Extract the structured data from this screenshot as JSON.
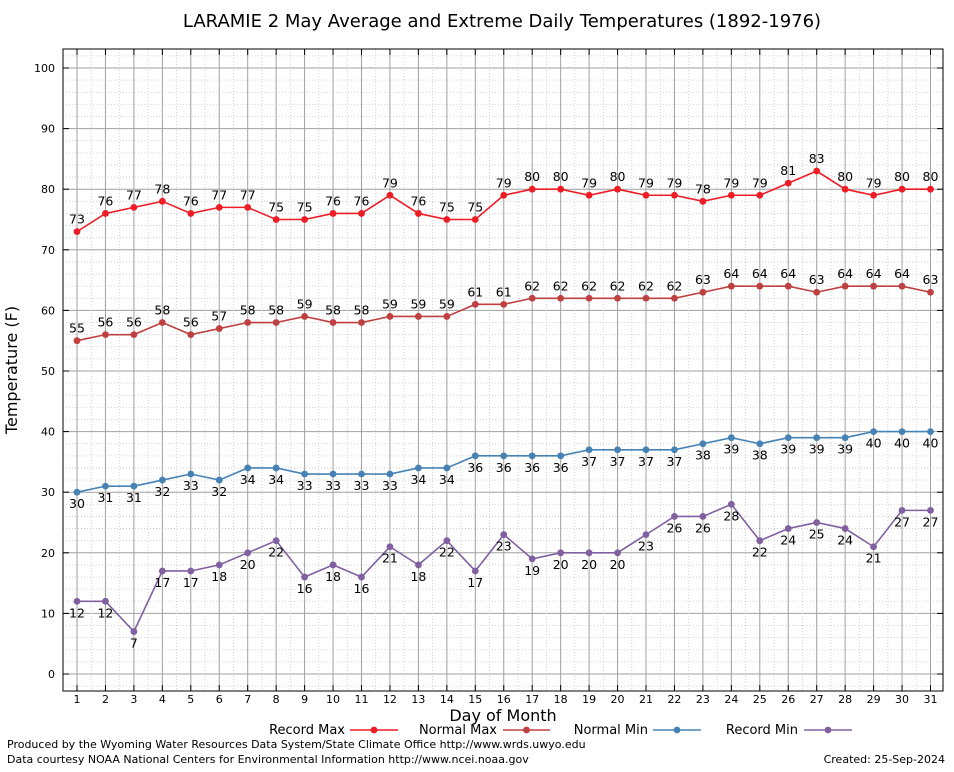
{
  "chart_data": {
    "type": "line",
    "title": "LARAMIE 2 May Average and Extreme Daily Temperatures (1892-1976)",
    "xlabel": "Day of Month",
    "ylabel": "Temperature (F)",
    "xlim": [
      1,
      31
    ],
    "ylim": [
      0,
      100
    ],
    "x": [
      1,
      2,
      3,
      4,
      5,
      6,
      7,
      8,
      9,
      10,
      11,
      12,
      13,
      14,
      15,
      16,
      17,
      18,
      19,
      20,
      21,
      22,
      23,
      24,
      25,
      26,
      27,
      28,
      29,
      30,
      31
    ],
    "yticks": [
      0,
      10,
      20,
      30,
      40,
      50,
      60,
      70,
      80,
      90,
      100
    ],
    "grid": true,
    "legend_position": "bottom",
    "series": [
      {
        "name": "Record Max",
        "color": "#ee1c25",
        "label_pos": "above",
        "values": [
          73,
          76,
          77,
          78,
          76,
          77,
          77,
          75,
          75,
          76,
          76,
          79,
          76,
          75,
          75,
          79,
          80,
          80,
          79,
          80,
          79,
          79,
          78,
          79,
          79,
          81,
          83,
          80,
          79,
          80,
          80
        ]
      },
      {
        "name": "Normal Max",
        "color": "#bf4040",
        "label_pos": "above",
        "values": [
          55,
          56,
          56,
          58,
          56,
          57,
          58,
          58,
          59,
          58,
          58,
          59,
          59,
          59,
          61,
          61,
          62,
          62,
          62,
          62,
          62,
          62,
          63,
          64,
          64,
          64,
          63,
          64,
          64,
          64,
          63
        ]
      },
      {
        "name": "Normal Min",
        "color": "#4682b4",
        "label_pos": "below",
        "values": [
          30,
          31,
          31,
          32,
          33,
          32,
          34,
          34,
          33,
          33,
          33,
          33,
          34,
          34,
          36,
          36,
          36,
          36,
          37,
          37,
          37,
          37,
          38,
          39,
          38,
          39,
          39,
          39,
          40,
          40,
          40
        ]
      },
      {
        "name": "Record Min",
        "color": "#8060a0",
        "label_pos": "below",
        "values": [
          12,
          12,
          7,
          17,
          17,
          18,
          20,
          22,
          16,
          18,
          16,
          21,
          18,
          22,
          17,
          23,
          19,
          20,
          20,
          20,
          23,
          26,
          26,
          28,
          22,
          24,
          25,
          24,
          21,
          27,
          27
        ]
      }
    ]
  },
  "footer": {
    "produced_by": "Produced by the Wyoming Water Resources Data System/State Climate Office http://www.wrds.uwyo.edu",
    "courtesy": "Data courtesy NOAA National Centers for Environmental Information http://www.ncei.noaa.gov",
    "created": "Created:  25-Sep-2024"
  }
}
